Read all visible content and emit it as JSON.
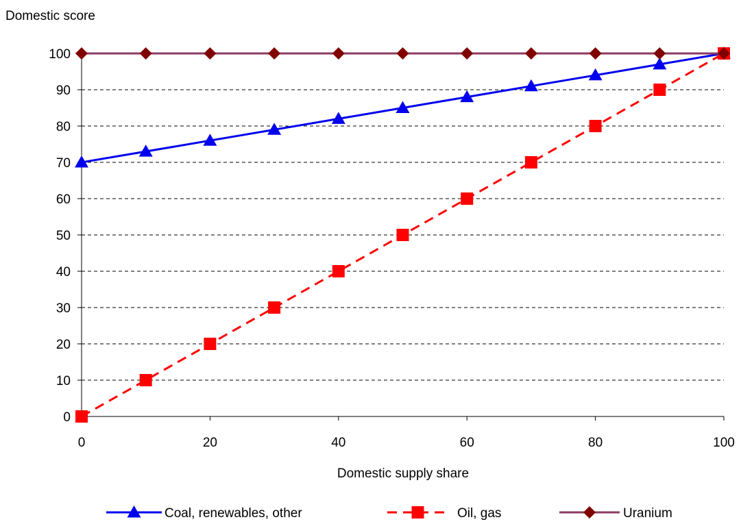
{
  "chart_data": {
    "type": "line",
    "title": "",
    "ylabel": "Domestic score",
    "xlabel": "Domestic supply share",
    "xlim": [
      0,
      100
    ],
    "ylim": [
      0,
      100
    ],
    "x_ticks": [
      0,
      20,
      40,
      60,
      80,
      100
    ],
    "y_ticks": [
      0,
      10,
      20,
      30,
      40,
      50,
      60,
      70,
      80,
      90,
      100
    ],
    "grid": "horizontal dashed",
    "legend_position": "bottom",
    "x": [
      0,
      10,
      20,
      30,
      40,
      50,
      60,
      70,
      80,
      90,
      100
    ],
    "series": [
      {
        "name": "Coal, renewables, other",
        "values": [
          70,
          73,
          76,
          79,
          82,
          85,
          88,
          91,
          94,
          97,
          100
        ],
        "color": "#0000ee",
        "marker": "triangle",
        "line_style": "solid"
      },
      {
        "name": "Oil, gas",
        "values": [
          0,
          10,
          20,
          30,
          40,
          50,
          60,
          70,
          80,
          90,
          100
        ],
        "color": "#ff0000",
        "marker": "square",
        "line_style": "dashed"
      },
      {
        "name": "Uranium",
        "values": [
          100,
          100,
          100,
          100,
          100,
          100,
          100,
          100,
          100,
          100,
          100
        ],
        "color": "#8b3a62",
        "marker_color": "#800000",
        "marker": "diamond",
        "line_style": "solid"
      }
    ]
  }
}
